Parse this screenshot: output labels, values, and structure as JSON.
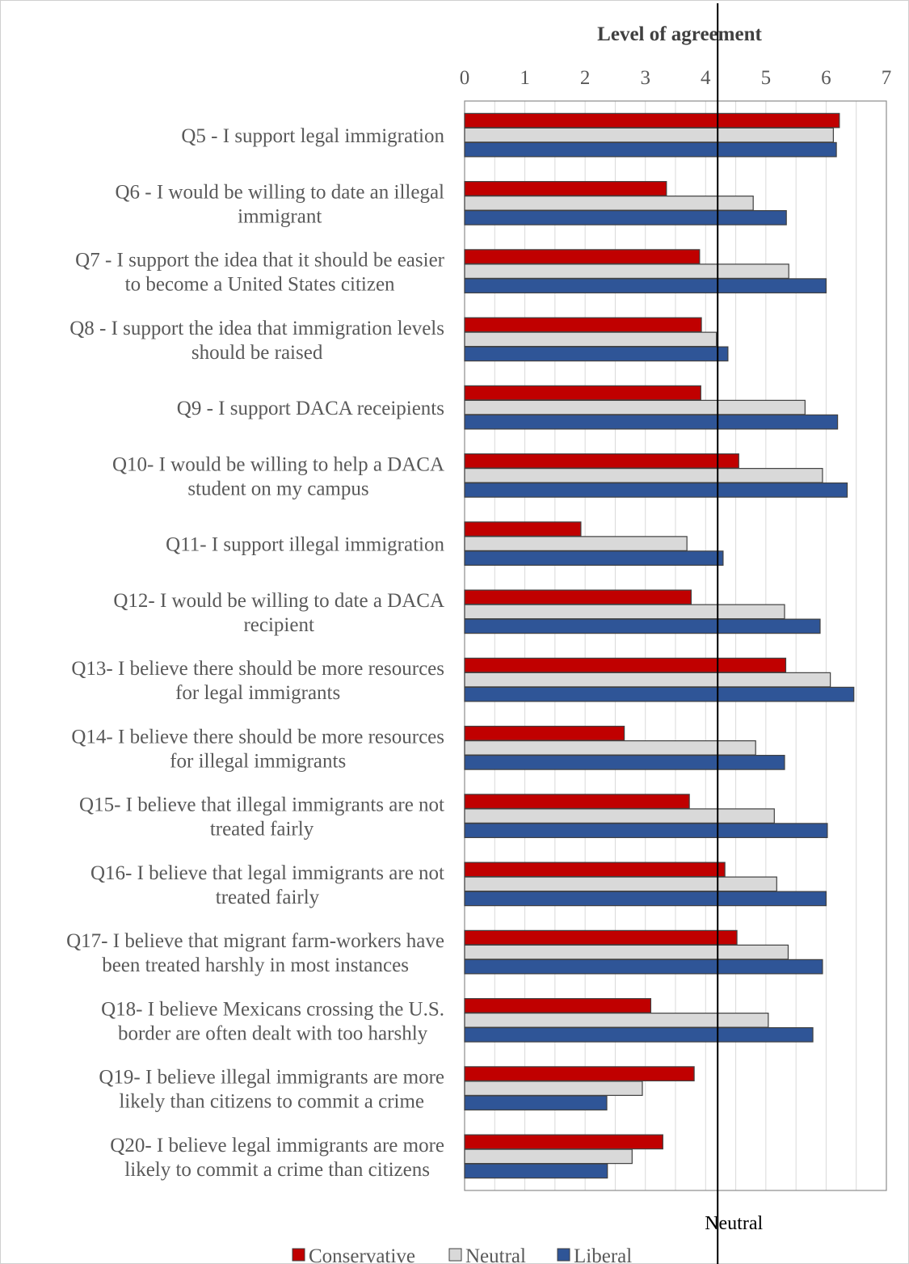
{
  "chart_data": {
    "type": "bar",
    "orientation": "horizontal",
    "axis_title": "Level of agreement",
    "xlim": [
      0,
      7
    ],
    "x_ticks": [
      "0",
      "1",
      "2",
      "3",
      "4",
      "5",
      "6",
      "7"
    ],
    "grid": true,
    "minor_grid": true,
    "reference_line": {
      "value": 4.2,
      "label": "Neutral"
    },
    "legend_position": "bottom",
    "categories": [
      [
        "Q5 - I support legal immigration"
      ],
      [
        "Q6 - I would be willing to date an illegal",
        "immigrant"
      ],
      [
        "Q7 - I support the idea that it should be easier",
        "to become a United States citizen"
      ],
      [
        "Q8 - I support the idea that immigration levels",
        "should be raised"
      ],
      [
        "Q9 - I support DACA receipients"
      ],
      [
        "Q10- I would be willing to help a DACA",
        "student on my campus"
      ],
      [
        "Q11- I support illegal immigration"
      ],
      [
        "Q12- I would be willing to date a DACA",
        "recipient"
      ],
      [
        "Q13- I believe there should be more resources",
        "for legal immigrants"
      ],
      [
        "Q14- I believe there should be more resources",
        "for illegal immigrants"
      ],
      [
        "Q15- I believe that illegal immigrants are not",
        "treated fairly"
      ],
      [
        "Q16- I believe that legal immigrants are not",
        "treated fairly"
      ],
      [
        "Q17- I believe that migrant farm-workers have",
        "been treated harshly in most instances"
      ],
      [
        "Q18- I believe Mexicans crossing the U.S.",
        "border are often dealt with too harshly"
      ],
      [
        "Q19- I believe illegal immigrants are more",
        "likely than citizens to commit a crime"
      ],
      [
        "Q20- I  believe legal immigrants are more",
        "likely to commit a crime than citizens"
      ]
    ],
    "series": [
      {
        "name": "Conservative",
        "color": "#c00000",
        "values": [
          6.22,
          3.35,
          3.9,
          3.93,
          3.92,
          4.55,
          1.93,
          3.76,
          5.33,
          2.65,
          3.73,
          4.32,
          4.52,
          3.09,
          3.81,
          3.29
        ]
      },
      {
        "name": "Neutral",
        "color": "#d9d9d9",
        "values": [
          6.12,
          4.79,
          5.38,
          4.18,
          5.65,
          5.94,
          3.69,
          5.31,
          6.07,
          4.83,
          5.14,
          5.18,
          5.37,
          5.04,
          2.95,
          2.78
        ]
      },
      {
        "name": "Liberal",
        "color": "#2f5597",
        "values": [
          6.17,
          5.34,
          6.0,
          4.37,
          6.19,
          6.35,
          4.29,
          5.9,
          6.46,
          5.31,
          6.02,
          6.0,
          5.94,
          5.78,
          2.36,
          2.37
        ]
      }
    ]
  }
}
